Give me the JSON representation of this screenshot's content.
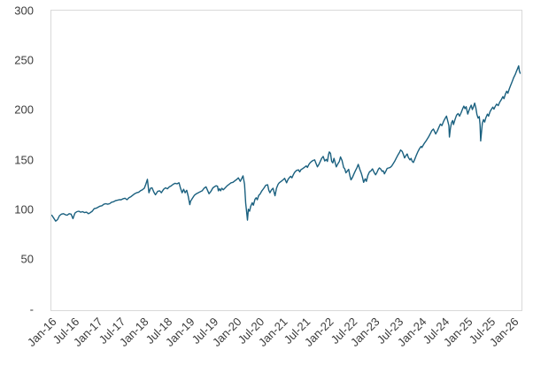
{
  "chart_data": {
    "type": "line",
    "title": "",
    "legend": "none",
    "grid": "off",
    "line_color": "#1a607f",
    "plot_border_color": "#d9d9d9",
    "axis_text_color": "#3b3b3b",
    "background_color": "#ffffff",
    "y_axis": {
      "min": 0,
      "max": 300,
      "ticks": [
        {
          "label": "300",
          "value": 300
        },
        {
          "label": "250",
          "value": 250
        },
        {
          "label": "200",
          "value": 200
        },
        {
          "label": "150",
          "value": 150
        },
        {
          "label": "100",
          "value": 100
        },
        {
          "label": "50",
          "value": 50
        },
        {
          "label": "-",
          "value": 0
        }
      ]
    },
    "x_axis": {
      "max_month": 121.5,
      "tick_months": [
        0,
        6,
        12,
        18,
        24,
        30,
        36,
        42,
        48,
        54,
        60,
        66,
        72,
        78,
        84,
        90,
        96,
        102,
        108,
        114,
        120
      ],
      "tick_labels": [
        "Jan-16",
        "Jul-16",
        "Jan-17",
        "Jul-17",
        "Jan-18",
        "Jul-18",
        "Jan-19",
        "Jul-19",
        "Jan-20",
        "Jul-20",
        "Jan-21",
        "Jul-21",
        "Jan-22",
        "Jul-22",
        "Jan-23",
        "Jul-23",
        "Jan-24",
        "Jul-24",
        "Jan-25",
        "Jul-25",
        "Jan-26"
      ]
    },
    "points_format": "[months_since_Jan16, index_value]",
    "points": [
      [
        0,
        95
      ],
      [
        0.5,
        92
      ],
      [
        1,
        89
      ],
      [
        1.5,
        90.5
      ],
      [
        2,
        94.5
      ],
      [
        2.5,
        96
      ],
      [
        3,
        96.5
      ],
      [
        3.5,
        95.5
      ],
      [
        4,
        95
      ],
      [
        4.5,
        96.5
      ],
      [
        5,
        96
      ],
      [
        5.5,
        91.5
      ],
      [
        6,
        97
      ],
      [
        6.5,
        98.5
      ],
      [
        7,
        99
      ],
      [
        7.5,
        98
      ],
      [
        8,
        98.5
      ],
      [
        8.5,
        97.5
      ],
      [
        9,
        98
      ],
      [
        9.5,
        96.5
      ],
      [
        10,
        97.5
      ],
      [
        10.5,
        99
      ],
      [
        11,
        101.5
      ],
      [
        11.5,
        102
      ],
      [
        12,
        103
      ],
      [
        12.5,
        104
      ],
      [
        13,
        104.5
      ],
      [
        13.5,
        106
      ],
      [
        14,
        106.5
      ],
      [
        14.5,
        106
      ],
      [
        15,
        106.5
      ],
      [
        15.5,
        108
      ],
      [
        16,
        108.5
      ],
      [
        16.5,
        109.5
      ],
      [
        17,
        110
      ],
      [
        17.5,
        110.5
      ],
      [
        18,
        110.5
      ],
      [
        18.5,
        111.5
      ],
      [
        19,
        112
      ],
      [
        19.5,
        110.5
      ],
      [
        20,
        112.5
      ],
      [
        20.5,
        113.5
      ],
      [
        21,
        115
      ],
      [
        21.5,
        116.5
      ],
      [
        22,
        117.5
      ],
      [
        22.5,
        118
      ],
      [
        23,
        119.5
      ],
      [
        23.5,
        120.5
      ],
      [
        24,
        122
      ],
      [
        24.4,
        126
      ],
      [
        24.8,
        131
      ],
      [
        25.2,
        117.5
      ],
      [
        25.6,
        122
      ],
      [
        26,
        122.5
      ],
      [
        26.5,
        118
      ],
      [
        26.9,
        115.5
      ],
      [
        27.5,
        119
      ],
      [
        28,
        119.5
      ],
      [
        28.4,
        117.5
      ],
      [
        29,
        121
      ],
      [
        29.5,
        122.5
      ],
      [
        30,
        121.5
      ],
      [
        30.5,
        123.5
      ],
      [
        31,
        124.5
      ],
      [
        31.5,
        126
      ],
      [
        32,
        127
      ],
      [
        32.5,
        126.5
      ],
      [
        33,
        127.5
      ],
      [
        33.4,
        122
      ],
      [
        33.8,
        117.5
      ],
      [
        34.2,
        121
      ],
      [
        34.6,
        117.5
      ],
      [
        35,
        120
      ],
      [
        35.4,
        114
      ],
      [
        35.8,
        105.5
      ],
      [
        36,
        109
      ],
      [
        36.5,
        112
      ],
      [
        37,
        115
      ],
      [
        37.5,
        116.5
      ],
      [
        38,
        117.5
      ],
      [
        38.5,
        118.5
      ],
      [
        39,
        119.5
      ],
      [
        39.5,
        122
      ],
      [
        40,
        123.5
      ],
      [
        40.4,
        120
      ],
      [
        40.8,
        116.5
      ],
      [
        41.3,
        119
      ],
      [
        41.8,
        122.5
      ],
      [
        42.2,
        123.5
      ],
      [
        42.6,
        124.5
      ],
      [
        43,
        124
      ],
      [
        43.2,
        119.5
      ],
      [
        43.5,
        121.5
      ],
      [
        43.8,
        119.5
      ],
      [
        44.1,
        122
      ],
      [
        44.5,
        120.5
      ],
      [
        45,
        122.5
      ],
      [
        45.5,
        124.5
      ],
      [
        46,
        126
      ],
      [
        46.5,
        127.5
      ],
      [
        47,
        128
      ],
      [
        47.5,
        129.5
      ],
      [
        48,
        131
      ],
      [
        48.4,
        132.5
      ],
      [
        48.9,
        129
      ],
      [
        49.3,
        132
      ],
      [
        49.6,
        134.5
      ],
      [
        50,
        126
      ],
      [
        50.3,
        107
      ],
      [
        50.55,
        98
      ],
      [
        50.75,
        90
      ],
      [
        51,
        101
      ],
      [
        51.3,
        99
      ],
      [
        51.6,
        104
      ],
      [
        52,
        107.5
      ],
      [
        52.3,
        105
      ],
      [
        52.7,
        111
      ],
      [
        53,
        112.5
      ],
      [
        53.3,
        110.5
      ],
      [
        53.7,
        115
      ],
      [
        54,
        116
      ],
      [
        54.5,
        119.5
      ],
      [
        55,
        122
      ],
      [
        55.5,
        125
      ],
      [
        56,
        125.5
      ],
      [
        56.3,
        120
      ],
      [
        56.6,
        117.5
      ],
      [
        57,
        120.5
      ],
      [
        57.4,
        122
      ],
      [
        57.9,
        114.5
      ],
      [
        58.3,
        122
      ],
      [
        58.7,
        126
      ],
      [
        59,
        127.5
      ],
      [
        59.5,
        129
      ],
      [
        60,
        130.5
      ],
      [
        60.4,
        132
      ],
      [
        60.9,
        127.5
      ],
      [
        61.3,
        131
      ],
      [
        61.7,
        133
      ],
      [
        62,
        134
      ],
      [
        62.3,
        132.5
      ],
      [
        62.7,
        136
      ],
      [
        63,
        138
      ],
      [
        63.5,
        140
      ],
      [
        64,
        140.5
      ],
      [
        64.3,
        138.5
      ],
      [
        64.7,
        141
      ],
      [
        65,
        141.5
      ],
      [
        65.5,
        143
      ],
      [
        66,
        144.5
      ],
      [
        66.3,
        143
      ],
      [
        66.7,
        146
      ],
      [
        67,
        147.5
      ],
      [
        67.4,
        149
      ],
      [
        67.8,
        150
      ],
      [
        68.2,
        150.5
      ],
      [
        68.5,
        147.5
      ],
      [
        68.9,
        143.5
      ],
      [
        69.3,
        146
      ],
      [
        69.7,
        149.5
      ],
      [
        70,
        152
      ],
      [
        70.4,
        154
      ],
      [
        70.8,
        149.5
      ],
      [
        71.2,
        151
      ],
      [
        71.5,
        149
      ],
      [
        71.8,
        156
      ],
      [
        72,
        158.5
      ],
      [
        72.3,
        157
      ],
      [
        72.6,
        149
      ],
      [
        72.9,
        147.5
      ],
      [
        73.2,
        152
      ],
      [
        73.5,
        148
      ],
      [
        73.8,
        143.5
      ],
      [
        74.2,
        146.5
      ],
      [
        74.6,
        149
      ],
      [
        74.9,
        153.5
      ],
      [
        75.3,
        150
      ],
      [
        75.7,
        143
      ],
      [
        76,
        141.5
      ],
      [
        76.3,
        137.5
      ],
      [
        76.6,
        139
      ],
      [
        77,
        141
      ],
      [
        77.3,
        135
      ],
      [
        77.6,
        130.5
      ],
      [
        78,
        133
      ],
      [
        78.4,
        136.5
      ],
      [
        78.8,
        140
      ],
      [
        79.2,
        143
      ],
      [
        79.5,
        146
      ],
      [
        79.9,
        141
      ],
      [
        80.3,
        137
      ],
      [
        80.6,
        133
      ],
      [
        80.9,
        128
      ],
      [
        81.3,
        131.5
      ],
      [
        81.6,
        129
      ],
      [
        82,
        135
      ],
      [
        82.4,
        138.5
      ],
      [
        82.8,
        139.5
      ],
      [
        83.2,
        141.5
      ],
      [
        83.6,
        138
      ],
      [
        84,
        135.5
      ],
      [
        84.3,
        137.5
      ],
      [
        84.7,
        141
      ],
      [
        85,
        142.5
      ],
      [
        85.3,
        141.5
      ],
      [
        85.7,
        139
      ],
      [
        86,
        139.5
      ],
      [
        86.3,
        136.5
      ],
      [
        86.7,
        139.5
      ],
      [
        87,
        142
      ],
      [
        87.4,
        142.5
      ],
      [
        87.8,
        143
      ],
      [
        88.2,
        144.5
      ],
      [
        88.6,
        147
      ],
      [
        89,
        149.5
      ],
      [
        89.4,
        152.5
      ],
      [
        89.8,
        155.5
      ],
      [
        90.2,
        158
      ],
      [
        90.5,
        160.5
      ],
      [
        90.9,
        159
      ],
      [
        91.2,
        156
      ],
      [
        91.5,
        152.5
      ],
      [
        91.9,
        155
      ],
      [
        92.2,
        156.5
      ],
      [
        92.5,
        153
      ],
      [
        92.9,
        150.5
      ],
      [
        93.2,
        152
      ],
      [
        93.5,
        149
      ],
      [
        93.8,
        148
      ],
      [
        94.2,
        151.5
      ],
      [
        94.6,
        155.5
      ],
      [
        95,
        159
      ],
      [
        95.4,
        162
      ],
      [
        95.8,
        164
      ],
      [
        96,
        163
      ],
      [
        96.3,
        165
      ],
      [
        96.7,
        167.5
      ],
      [
        97,
        169
      ],
      [
        97.4,
        171.5
      ],
      [
        97.8,
        174
      ],
      [
        98.2,
        177
      ],
      [
        98.6,
        180
      ],
      [
        99,
        181.5
      ],
      [
        99.3,
        179
      ],
      [
        99.6,
        176.5
      ],
      [
        100,
        179.5
      ],
      [
        100.4,
        183
      ],
      [
        100.8,
        186.5
      ],
      [
        101.2,
        185
      ],
      [
        101.6,
        189
      ],
      [
        102,
        192
      ],
      [
        102.4,
        194.5
      ],
      [
        102.7,
        190
      ],
      [
        103,
        185
      ],
      [
        103.15,
        173.5
      ],
      [
        103.4,
        182
      ],
      [
        103.7,
        188
      ],
      [
        104,
        190
      ],
      [
        104.2,
        186
      ],
      [
        104.6,
        191
      ],
      [
        105,
        195.5
      ],
      [
        105.4,
        197
      ],
      [
        105.8,
        194.5
      ],
      [
        106.2,
        198
      ],
      [
        106.6,
        202
      ],
      [
        106.9,
        204.5
      ],
      [
        107.2,
        202
      ],
      [
        107.5,
        204
      ],
      [
        107.9,
        196.5
      ],
      [
        108.2,
        200
      ],
      [
        108.5,
        203
      ],
      [
        108.8,
        205.5
      ],
      [
        109.1,
        201
      ],
      [
        109.4,
        204
      ],
      [
        109.7,
        207.5
      ],
      [
        110,
        203
      ],
      [
        110.3,
        196
      ],
      [
        110.6,
        192.5
      ],
      [
        110.9,
        194
      ],
      [
        111.1,
        186
      ],
      [
        111.25,
        169.5
      ],
      [
        111.5,
        180
      ],
      [
        111.7,
        187.5
      ],
      [
        112,
        191
      ],
      [
        112.3,
        188.5
      ],
      [
        112.6,
        193
      ],
      [
        113,
        196.5
      ],
      [
        113.3,
        194.5
      ],
      [
        113.7,
        199
      ],
      [
        114,
        201
      ],
      [
        114.4,
        203.5
      ],
      [
        114.7,
        201.5
      ],
      [
        115,
        204
      ],
      [
        115.4,
        206.5
      ],
      [
        115.8,
        205
      ],
      [
        116.2,
        208.5
      ],
      [
        116.6,
        211
      ],
      [
        117,
        214
      ],
      [
        117.3,
        212
      ],
      [
        117.7,
        217
      ],
      [
        118,
        219.5
      ],
      [
        118.3,
        217.5
      ],
      [
        118.7,
        222
      ],
      [
        119,
        225
      ],
      [
        119.4,
        229
      ],
      [
        119.8,
        233
      ],
      [
        120.2,
        236
      ],
      [
        120.5,
        239
      ],
      [
        120.8,
        242
      ],
      [
        121.1,
        245
      ],
      [
        121.3,
        240
      ],
      [
        121.5,
        237.5
      ]
    ]
  }
}
